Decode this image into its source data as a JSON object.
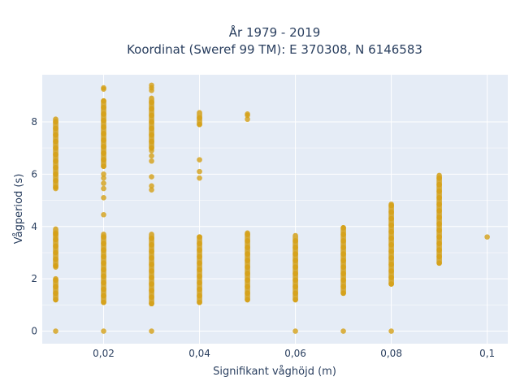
{
  "chart_data": {
    "type": "scatter",
    "title_line1": "År 1979 - 2019",
    "title_line2": "Koordinat (Sweref 99 TM): E 370308, N 6146583",
    "xlabel": "Signifikant våghöjd (m)",
    "ylabel": "Vågperiod (s)",
    "xlim": [
      0.0072,
      0.1043
    ],
    "ylim": [
      -0.48,
      9.8
    ],
    "x_ticks": [
      0.02,
      0.04,
      0.06,
      0.08,
      0.1
    ],
    "x_tick_labels": [
      "0,02",
      "0,04",
      "0,06",
      "0,08",
      "0,1"
    ],
    "y_ticks": [
      0,
      2,
      4,
      6,
      8
    ],
    "y_tick_labels": [
      "0",
      "2",
      "4",
      "6",
      "8"
    ],
    "grid": true,
    "marker_color": "#d4a017",
    "plot_background": "#e5ecf6",
    "columns": [
      {
        "x": 0.01,
        "ranges": [
          [
            1.2,
            2.0
          ],
          [
            2.5,
            3.9
          ],
          [
            5.5,
            8.1
          ]
        ],
        "points": [
          0,
          5.45,
          2.45,
          3.7
        ]
      },
      {
        "x": 0.02,
        "ranges": [
          [
            1.1,
            3.7
          ],
          [
            6.3,
            8.8
          ]
        ],
        "points": [
          0,
          4.45,
          5.1,
          5.45,
          5.65,
          5.85,
          6.0,
          9.25,
          9.3
        ]
      },
      {
        "x": 0.03,
        "ranges": [
          [
            1.05,
            3.7
          ],
          [
            7.0,
            8.9
          ]
        ],
        "points": [
          0,
          5.4,
          5.55,
          5.9,
          6.5,
          6.7,
          6.9,
          9.2,
          9.3,
          9.4
        ]
      },
      {
        "x": 0.04,
        "ranges": [
          [
            1.1,
            3.6
          ],
          [
            7.9,
            8.35
          ]
        ],
        "points": [
          5.85,
          6.1,
          6.55
        ]
      },
      {
        "x": 0.05,
        "ranges": [
          [
            1.2,
            3.75
          ]
        ],
        "points": [
          8.1,
          8.25,
          8.3
        ]
      },
      {
        "x": 0.06,
        "ranges": [
          [
            1.2,
            3.65
          ]
        ],
        "points": [
          0
        ]
      },
      {
        "x": 0.07,
        "ranges": [
          [
            1.45,
            3.95
          ]
        ],
        "points": [
          0
        ]
      },
      {
        "x": 0.08,
        "ranges": [
          [
            1.8,
            4.85
          ]
        ],
        "points": [
          0
        ]
      },
      {
        "x": 0.09,
        "ranges": [
          [
            2.6,
            5.95
          ]
        ],
        "points": []
      },
      {
        "x": 0.1,
        "ranges": [],
        "points": [
          3.6
        ]
      }
    ]
  }
}
